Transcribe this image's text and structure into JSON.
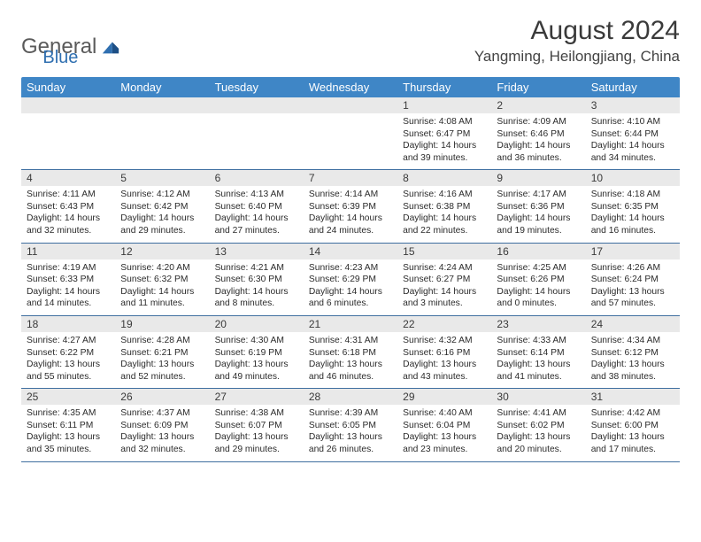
{
  "colors": {
    "header_bg": "#3f86c6",
    "header_fg": "#ffffff",
    "dayrow_bg": "#e9e9e9",
    "divider": "#3f6fa0",
    "logo_gray": "#5a5a5a",
    "logo_blue": "#2f6fb0",
    "text": "#2b2b2b"
  },
  "fonts": {
    "base": "Arial",
    "title_pt": 30,
    "location_pt": 17,
    "head_pt": 13,
    "daynum_pt": 12,
    "body_pt": 10.3
  },
  "logo": {
    "part1": "General",
    "part2": "Blue"
  },
  "title": "August 2024",
  "location": "Yangming, Heilongjiang, China",
  "weekdays": [
    "Sunday",
    "Monday",
    "Tuesday",
    "Wednesday",
    "Thursday",
    "Friday",
    "Saturday"
  ],
  "weeks": [
    {
      "nums": [
        "",
        "",
        "",
        "",
        "1",
        "2",
        "3"
      ],
      "cells": [
        null,
        null,
        null,
        null,
        {
          "sunrise": "Sunrise: 4:08 AM",
          "sunset": "Sunset: 6:47 PM",
          "d1": "Daylight: 14 hours",
          "d2": "and 39 minutes."
        },
        {
          "sunrise": "Sunrise: 4:09 AM",
          "sunset": "Sunset: 6:46 PM",
          "d1": "Daylight: 14 hours",
          "d2": "and 36 minutes."
        },
        {
          "sunrise": "Sunrise: 4:10 AM",
          "sunset": "Sunset: 6:44 PM",
          "d1": "Daylight: 14 hours",
          "d2": "and 34 minutes."
        }
      ]
    },
    {
      "nums": [
        "4",
        "5",
        "6",
        "7",
        "8",
        "9",
        "10"
      ],
      "cells": [
        {
          "sunrise": "Sunrise: 4:11 AM",
          "sunset": "Sunset: 6:43 PM",
          "d1": "Daylight: 14 hours",
          "d2": "and 32 minutes."
        },
        {
          "sunrise": "Sunrise: 4:12 AM",
          "sunset": "Sunset: 6:42 PM",
          "d1": "Daylight: 14 hours",
          "d2": "and 29 minutes."
        },
        {
          "sunrise": "Sunrise: 4:13 AM",
          "sunset": "Sunset: 6:40 PM",
          "d1": "Daylight: 14 hours",
          "d2": "and 27 minutes."
        },
        {
          "sunrise": "Sunrise: 4:14 AM",
          "sunset": "Sunset: 6:39 PM",
          "d1": "Daylight: 14 hours",
          "d2": "and 24 minutes."
        },
        {
          "sunrise": "Sunrise: 4:16 AM",
          "sunset": "Sunset: 6:38 PM",
          "d1": "Daylight: 14 hours",
          "d2": "and 22 minutes."
        },
        {
          "sunrise": "Sunrise: 4:17 AM",
          "sunset": "Sunset: 6:36 PM",
          "d1": "Daylight: 14 hours",
          "d2": "and 19 minutes."
        },
        {
          "sunrise": "Sunrise: 4:18 AM",
          "sunset": "Sunset: 6:35 PM",
          "d1": "Daylight: 14 hours",
          "d2": "and 16 minutes."
        }
      ]
    },
    {
      "nums": [
        "11",
        "12",
        "13",
        "14",
        "15",
        "16",
        "17"
      ],
      "cells": [
        {
          "sunrise": "Sunrise: 4:19 AM",
          "sunset": "Sunset: 6:33 PM",
          "d1": "Daylight: 14 hours",
          "d2": "and 14 minutes."
        },
        {
          "sunrise": "Sunrise: 4:20 AM",
          "sunset": "Sunset: 6:32 PM",
          "d1": "Daylight: 14 hours",
          "d2": "and 11 minutes."
        },
        {
          "sunrise": "Sunrise: 4:21 AM",
          "sunset": "Sunset: 6:30 PM",
          "d1": "Daylight: 14 hours",
          "d2": "and 8 minutes."
        },
        {
          "sunrise": "Sunrise: 4:23 AM",
          "sunset": "Sunset: 6:29 PM",
          "d1": "Daylight: 14 hours",
          "d2": "and 6 minutes."
        },
        {
          "sunrise": "Sunrise: 4:24 AM",
          "sunset": "Sunset: 6:27 PM",
          "d1": "Daylight: 14 hours",
          "d2": "and 3 minutes."
        },
        {
          "sunrise": "Sunrise: 4:25 AM",
          "sunset": "Sunset: 6:26 PM",
          "d1": "Daylight: 14 hours",
          "d2": "and 0 minutes."
        },
        {
          "sunrise": "Sunrise: 4:26 AM",
          "sunset": "Sunset: 6:24 PM",
          "d1": "Daylight: 13 hours",
          "d2": "and 57 minutes."
        }
      ]
    },
    {
      "nums": [
        "18",
        "19",
        "20",
        "21",
        "22",
        "23",
        "24"
      ],
      "cells": [
        {
          "sunrise": "Sunrise: 4:27 AM",
          "sunset": "Sunset: 6:22 PM",
          "d1": "Daylight: 13 hours",
          "d2": "and 55 minutes."
        },
        {
          "sunrise": "Sunrise: 4:28 AM",
          "sunset": "Sunset: 6:21 PM",
          "d1": "Daylight: 13 hours",
          "d2": "and 52 minutes."
        },
        {
          "sunrise": "Sunrise: 4:30 AM",
          "sunset": "Sunset: 6:19 PM",
          "d1": "Daylight: 13 hours",
          "d2": "and 49 minutes."
        },
        {
          "sunrise": "Sunrise: 4:31 AM",
          "sunset": "Sunset: 6:18 PM",
          "d1": "Daylight: 13 hours",
          "d2": "and 46 minutes."
        },
        {
          "sunrise": "Sunrise: 4:32 AM",
          "sunset": "Sunset: 6:16 PM",
          "d1": "Daylight: 13 hours",
          "d2": "and 43 minutes."
        },
        {
          "sunrise": "Sunrise: 4:33 AM",
          "sunset": "Sunset: 6:14 PM",
          "d1": "Daylight: 13 hours",
          "d2": "and 41 minutes."
        },
        {
          "sunrise": "Sunrise: 4:34 AM",
          "sunset": "Sunset: 6:12 PM",
          "d1": "Daylight: 13 hours",
          "d2": "and 38 minutes."
        }
      ]
    },
    {
      "nums": [
        "25",
        "26",
        "27",
        "28",
        "29",
        "30",
        "31"
      ],
      "cells": [
        {
          "sunrise": "Sunrise: 4:35 AM",
          "sunset": "Sunset: 6:11 PM",
          "d1": "Daylight: 13 hours",
          "d2": "and 35 minutes."
        },
        {
          "sunrise": "Sunrise: 4:37 AM",
          "sunset": "Sunset: 6:09 PM",
          "d1": "Daylight: 13 hours",
          "d2": "and 32 minutes."
        },
        {
          "sunrise": "Sunrise: 4:38 AM",
          "sunset": "Sunset: 6:07 PM",
          "d1": "Daylight: 13 hours",
          "d2": "and 29 minutes."
        },
        {
          "sunrise": "Sunrise: 4:39 AM",
          "sunset": "Sunset: 6:05 PM",
          "d1": "Daylight: 13 hours",
          "d2": "and 26 minutes."
        },
        {
          "sunrise": "Sunrise: 4:40 AM",
          "sunset": "Sunset: 6:04 PM",
          "d1": "Daylight: 13 hours",
          "d2": "and 23 minutes."
        },
        {
          "sunrise": "Sunrise: 4:41 AM",
          "sunset": "Sunset: 6:02 PM",
          "d1": "Daylight: 13 hours",
          "d2": "and 20 minutes."
        },
        {
          "sunrise": "Sunrise: 4:42 AM",
          "sunset": "Sunset: 6:00 PM",
          "d1": "Daylight: 13 hours",
          "d2": "and 17 minutes."
        }
      ]
    }
  ]
}
